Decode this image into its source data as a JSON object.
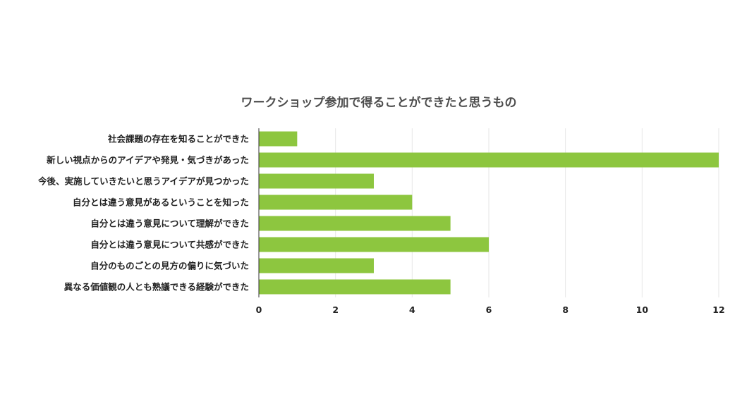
{
  "chart_data": {
    "type": "bar",
    "orientation": "horizontal",
    "title": "ワークショップ参加で得ることができたと思うもの",
    "categories": [
      "社会課題の存在を知ることができた",
      "新しい視点からのアイデアや発見・気づきがあった",
      "今後、実施していきたいと思うアイデアが見つかった",
      "自分とは違う意見があるということを知った",
      "自分とは違う意見について理解ができた",
      "自分とは違う意見について共感ができた",
      "自分のものごとの見方の偏りに気づいた",
      "異なる価値観の人とも熟議できる経験ができた"
    ],
    "values": [
      1,
      12,
      3,
      4,
      5,
      6,
      3,
      5
    ],
    "xlim": [
      0,
      12
    ],
    "xticks": [
      "0",
      "2",
      "4",
      "6",
      "8",
      "10",
      "12"
    ],
    "xlabel": "",
    "ylabel": "",
    "grid": true,
    "legend": "none",
    "bar_color": "#8dc63f"
  }
}
